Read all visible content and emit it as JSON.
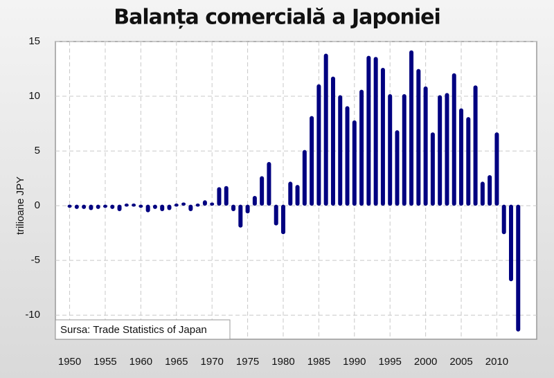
{
  "chart_data": {
    "type": "bar",
    "title": "Balanța comercială a Japoniei",
    "y_label": "trilioane JPY",
    "source": "Sursa: Trade Statistics of Japan",
    "color": "#000080",
    "grid": true,
    "x": [
      1950,
      1951,
      1952,
      1953,
      1954,
      1955,
      1956,
      1957,
      1958,
      1959,
      1960,
      1961,
      1962,
      1963,
      1964,
      1965,
      1966,
      1967,
      1968,
      1969,
      1970,
      1971,
      1972,
      1973,
      1974,
      1975,
      1976,
      1977,
      1978,
      1979,
      1980,
      1981,
      1982,
      1983,
      1984,
      1985,
      1986,
      1987,
      1988,
      1989,
      1990,
      1991,
      1992,
      1993,
      1994,
      1995,
      1996,
      1997,
      1998,
      1999,
      2000,
      2001,
      2002,
      2003,
      2004,
      2005,
      2006,
      2007,
      2008,
      2009,
      2010,
      2011,
      2012,
      2013
    ],
    "values": [
      -0.1,
      -0.3,
      -0.3,
      -0.4,
      -0.3,
      -0.2,
      -0.3,
      -0.5,
      0.1,
      0.1,
      -0.1,
      -0.6,
      -0.3,
      -0.5,
      -0.4,
      0.1,
      0.2,
      -0.5,
      0.1,
      0.4,
      0.2,
      1.6,
      1.7,
      -0.5,
      -2.0,
      -0.7,
      0.8,
      2.6,
      3.9,
      -1.8,
      -2.6,
      2.1,
      1.8,
      5.0,
      8.1,
      11.0,
      13.8,
      11.7,
      10.0,
      9.0,
      7.7,
      10.5,
      13.6,
      13.5,
      12.5,
      10.1,
      6.8,
      10.1,
      14.1,
      12.4,
      10.8,
      6.6,
      10.0,
      10.2,
      12.0,
      8.8,
      8.0,
      10.9,
      2.1,
      2.7,
      6.6,
      -2.6,
      -6.9,
      -11.5
    ],
    "xlim": [
      1948,
      2015.6
    ],
    "xticks": [
      1950,
      1955,
      1960,
      1965,
      1970,
      1975,
      1980,
      1985,
      1990,
      1995,
      2000,
      2005,
      2010
    ],
    "ylim": [
      -12.2,
      15
    ],
    "yticks": [
      -10,
      -5,
      0,
      5,
      10,
      15
    ]
  }
}
